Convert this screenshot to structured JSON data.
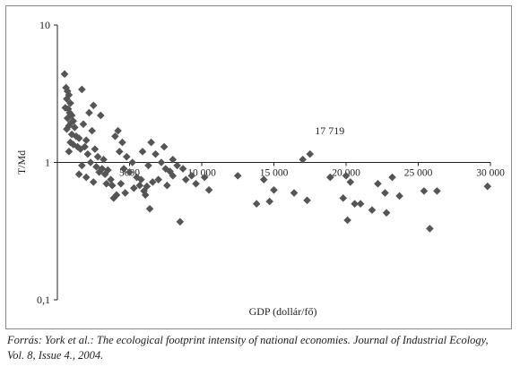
{
  "chart_data": {
    "type": "scatter",
    "xlabel": "GDP (dollár/fő)",
    "ylabel": "T/Md",
    "xlim": [
      0,
      30000
    ],
    "ylim": [
      0.1,
      10
    ],
    "y_scale": "log",
    "x_ticks": [
      "5000",
      "10 000",
      "15 000",
      "20 000",
      "25 000",
      "30 000"
    ],
    "y_ticks": [
      "0,1",
      "1",
      "10"
    ],
    "annotation": "17 719",
    "marker": "diamond",
    "color": "#555555",
    "series": [
      {
        "points": [
          [
            500,
            4.4
          ],
          [
            600,
            3.5
          ],
          [
            700,
            3.3
          ],
          [
            800,
            3.1
          ],
          [
            650,
            2.9
          ],
          [
            900,
            2.7
          ],
          [
            550,
            2.5
          ],
          [
            750,
            2.45
          ],
          [
            850,
            2.3
          ],
          [
            1000,
            2.2
          ],
          [
            700,
            2.1
          ],
          [
            1100,
            2.0
          ],
          [
            950,
            1.95
          ],
          [
            800,
            1.85
          ],
          [
            1200,
            1.8
          ],
          [
            650,
            1.75
          ],
          [
            1000,
            1.6
          ],
          [
            1300,
            1.55
          ],
          [
            1500,
            1.5
          ],
          [
            900,
            1.4
          ],
          [
            1100,
            1.35
          ],
          [
            1400,
            1.3
          ],
          [
            1600,
            1.25
          ],
          [
            800,
            1.2
          ],
          [
            1700,
            3.4
          ],
          [
            2500,
            2.6
          ],
          [
            2200,
            2.3
          ],
          [
            3000,
            2.2
          ],
          [
            1800,
            1.9
          ],
          [
            2400,
            1.7
          ],
          [
            2000,
            1.45
          ],
          [
            1900,
            1.3
          ],
          [
            2600,
            1.25
          ],
          [
            2100,
            1.15
          ],
          [
            2800,
            1.1
          ],
          [
            3200,
            1.05
          ],
          [
            2300,
            1.0
          ],
          [
            1700,
            0.95
          ],
          [
            2700,
            0.93
          ],
          [
            3100,
            0.9
          ],
          [
            3500,
            0.88
          ],
          [
            2900,
            0.85
          ],
          [
            1500,
            0.82
          ],
          [
            2000,
            0.78
          ],
          [
            3300,
            0.82
          ],
          [
            3700,
            0.75
          ],
          [
            3400,
            0.7
          ],
          [
            3800,
            0.68
          ],
          [
            2500,
            0.72
          ],
          [
            4200,
            1.7
          ],
          [
            4000,
            1.55
          ],
          [
            4500,
            1.4
          ],
          [
            4300,
            1.2
          ],
          [
            4800,
            1.1
          ],
          [
            5200,
            1.0
          ],
          [
            4600,
            0.9
          ],
          [
            5000,
            0.85
          ],
          [
            5500,
            0.78
          ],
          [
            5800,
            0.75
          ],
          [
            4400,
            0.7
          ],
          [
            5300,
            0.65
          ],
          [
            6000,
            0.62
          ],
          [
            4700,
            0.6
          ],
          [
            4100,
            0.58
          ],
          [
            3900,
            0.55
          ],
          [
            6200,
            0.67
          ],
          [
            5700,
            0.68
          ],
          [
            6500,
            1.4
          ],
          [
            6800,
            1.15
          ],
          [
            7200,
            1.0
          ],
          [
            6300,
            0.95
          ],
          [
            7500,
            0.9
          ],
          [
            7800,
            0.86
          ],
          [
            8000,
            0.8
          ],
          [
            8300,
            0.95
          ],
          [
            8700,
            0.9
          ],
          [
            7000,
            0.75
          ],
          [
            6600,
            0.72
          ],
          [
            6100,
            0.58
          ],
          [
            7600,
            0.68
          ],
          [
            7400,
            1.3
          ],
          [
            8000,
            1.05
          ],
          [
            5900,
            1.2
          ],
          [
            6400,
            0.46
          ],
          [
            8500,
            0.37
          ],
          [
            8900,
            0.75
          ],
          [
            9300,
            0.8
          ],
          [
            9600,
            0.7
          ],
          [
            10200,
            0.78
          ],
          [
            10500,
            0.63
          ],
          [
            12500,
            0.8
          ],
          [
            14300,
            0.75
          ],
          [
            15000,
            0.63
          ],
          [
            13800,
            0.5
          ],
          [
            14700,
            0.52
          ],
          [
            16400,
            0.6
          ],
          [
            17000,
            1.05
          ],
          [
            17500,
            1.15
          ],
          [
            17300,
            0.53
          ],
          [
            18900,
            0.78
          ],
          [
            20000,
            0.8
          ],
          [
            20300,
            0.72
          ],
          [
            19800,
            0.55
          ],
          [
            20600,
            0.5
          ],
          [
            21000,
            0.5
          ],
          [
            21800,
            0.45
          ],
          [
            20100,
            0.38
          ],
          [
            22200,
            0.7
          ],
          [
            22700,
            0.6
          ],
          [
            23200,
            0.78
          ],
          [
            23700,
            0.57
          ],
          [
            22800,
            0.43
          ],
          [
            25400,
            0.62
          ],
          [
            26300,
            0.62
          ],
          [
            25800,
            0.33
          ],
          [
            29800,
            0.67
          ]
        ]
      }
    ]
  },
  "source": {
    "line1": "Forrás: York et al.: The ecological footprint intensity of national economies. Journal of Industrial Ecology,",
    "line2": "Vol. 8, Issue 4., 2004."
  }
}
